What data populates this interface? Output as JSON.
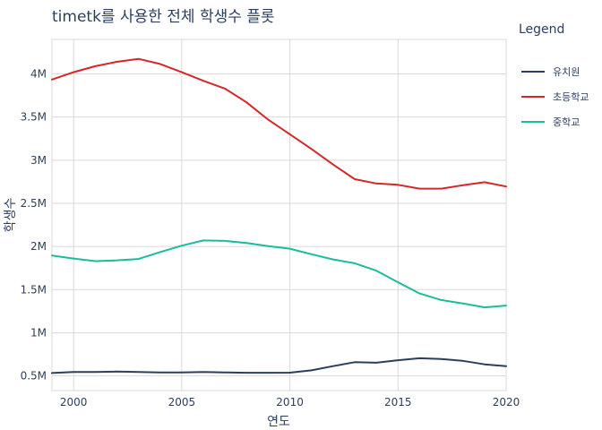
{
  "chart_data": {
    "type": "line",
    "title": "timetk를 사용한 전체 학생수 플롯",
    "xlabel": "연도",
    "ylabel": "학생수",
    "xlim": [
      1999,
      2020
    ],
    "ylim": [
      330000,
      4400000
    ],
    "x_ticks": [
      2000,
      2005,
      2010,
      2015,
      2020
    ],
    "y_ticks": [
      500000,
      1000000,
      1500000,
      2000000,
      2500000,
      3000000,
      3500000,
      4000000
    ],
    "y_tick_labels": [
      "0.5M",
      "1M",
      "1.5M",
      "2M",
      "2.5M",
      "3M",
      "3.5M",
      "4M"
    ],
    "grid": true,
    "legend": {
      "title": "Legend",
      "position": "right"
    },
    "x": [
      1999,
      2000,
      2001,
      2002,
      2003,
      2004,
      2005,
      2006,
      2007,
      2008,
      2009,
      2010,
      2011,
      2012,
      2013,
      2014,
      2015,
      2016,
      2017,
      2018,
      2019,
      2020
    ],
    "series": [
      {
        "name": "유치원",
        "color": "#2a3f5f",
        "values": [
          534000,
          545000,
          545000,
          550000,
          546000,
          541000,
          541000,
          545000,
          541000,
          537000,
          537000,
          538000,
          565000,
          613000,
          659000,
          653000,
          682000,
          705000,
          695000,
          675000,
          634000,
          612000
        ]
      },
      {
        "name": "초등학교",
        "color": "#d62728",
        "values": [
          3935000,
          4020000,
          4090000,
          4140000,
          4175000,
          4115000,
          4020000,
          3920000,
          3830000,
          3670000,
          3470000,
          3300000,
          3130000,
          2950000,
          2780000,
          2730000,
          2715000,
          2670000,
          2670000,
          2710000,
          2745000,
          2695000
        ]
      },
      {
        "name": "중학교",
        "color": "#1abc9c",
        "values": [
          1895000,
          1860000,
          1830000,
          1840000,
          1855000,
          1935000,
          2010000,
          2070000,
          2065000,
          2040000,
          2005000,
          1975000,
          1910000,
          1850000,
          1805000,
          1720000,
          1585000,
          1455000,
          1380000,
          1340000,
          1295000,
          1315000
        ]
      }
    ]
  }
}
